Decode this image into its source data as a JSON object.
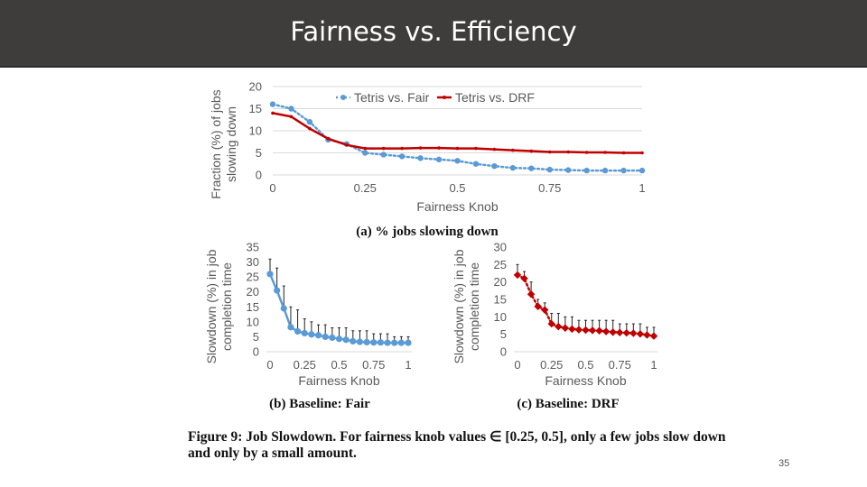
{
  "slide": {
    "title": "Fairness vs. Efficiency",
    "caption": "Figure 9: Job Slowdown. For fairness knob values ∈ [0.25, 0.5], only a few jobs slow down and only by a small amount.",
    "page_number": "35",
    "colors": {
      "title_bg": "#3f3d3b",
      "tetris_fair": "#5b9bd5",
      "tetris_drf": "#c00000"
    }
  },
  "chart_data": [
    {
      "id": "a",
      "type": "line",
      "subcaption": "(a) % jobs slowing down",
      "xlabel": "Fairness Knob",
      "ylabel": "Fraction (%) of jobs slowing down",
      "ylabel_lines": [
        "Fraction (%) of jobs",
        "slowing down"
      ],
      "xlim": [
        0,
        1
      ],
      "ylim": [
        0,
        20
      ],
      "xticks": [
        0,
        0.25,
        0.5,
        0.75,
        1
      ],
      "xtick_labels": [
        "0",
        "0.25",
        "0.5",
        "0.75",
        "1"
      ],
      "yticks": [
        0,
        5,
        10,
        15,
        20
      ],
      "ytick_labels": [
        "0",
        "5",
        "10",
        "15",
        "20"
      ],
      "grid": true,
      "legend": "top-center",
      "x": [
        0,
        0.05,
        0.1,
        0.15,
        0.2,
        0.25,
        0.3,
        0.35,
        0.4,
        0.45,
        0.5,
        0.55,
        0.6,
        0.65,
        0.7,
        0.75,
        0.8,
        0.85,
        0.9,
        0.95,
        1.0
      ],
      "series": [
        {
          "name": "Tetris vs. Fair",
          "color": "#5b9bd5",
          "style": "dotted",
          "values": [
            16,
            15,
            12,
            8,
            7,
            5,
            4.6,
            4.2,
            3.8,
            3.5,
            3.2,
            2.5,
            2.0,
            1.6,
            1.5,
            1.2,
            1.1,
            1.0,
            1.0,
            1.0,
            1.0
          ]
        },
        {
          "name": "Tetris vs. DRF",
          "color": "#c00000",
          "style": "solid",
          "values": [
            14,
            13.2,
            10.5,
            8.2,
            6.8,
            6.0,
            6.0,
            6.0,
            6.1,
            6.1,
            6.0,
            6.0,
            5.8,
            5.6,
            5.4,
            5.2,
            5.2,
            5.1,
            5.1,
            5.0,
            5.0
          ]
        }
      ]
    },
    {
      "id": "b",
      "type": "line",
      "subcaption": "(b) Baseline: Fair",
      "xlabel": "Fairness Knob",
      "ylabel": "Slowdown (%) in job completion time",
      "ylabel_lines": [
        "Slowdown (%) in job",
        "completion time"
      ],
      "xlim": [
        0,
        1
      ],
      "ylim": [
        0,
        35
      ],
      "xticks": [
        0,
        0.25,
        0.5,
        0.75,
        1
      ],
      "xtick_labels": [
        "0",
        "0.25",
        "0.5",
        "0.75",
        "1"
      ],
      "yticks": [
        0,
        5,
        10,
        15,
        20,
        25,
        30,
        35
      ],
      "ytick_labels": [
        "0",
        "5",
        "10",
        "15",
        "20",
        "25",
        "30",
        "35"
      ],
      "grid": false,
      "x": [
        0,
        0.05,
        0.1,
        0.15,
        0.2,
        0.25,
        0.3,
        0.35,
        0.4,
        0.45,
        0.5,
        0.55,
        0.6,
        0.65,
        0.7,
        0.75,
        0.8,
        0.85,
        0.9,
        0.95,
        1.0
      ],
      "series": [
        {
          "name": "",
          "color": "#5b9bd5",
          "style": "solid",
          "values": [
            26,
            20.5,
            14.5,
            8.2,
            6.8,
            6.2,
            5.8,
            5.5,
            5.0,
            4.7,
            4.3,
            4.0,
            3.5,
            3.3,
            3.2,
            3.1,
            3.1,
            3.0,
            3.0,
            3.0,
            3.0
          ],
          "error_upper": [
            31,
            28,
            22,
            15,
            14,
            11,
            10,
            9,
            9,
            8,
            8,
            8,
            7,
            7,
            7,
            6,
            6,
            6,
            5,
            5,
            5
          ]
        }
      ]
    },
    {
      "id": "c",
      "type": "line",
      "subcaption": "(c) Baseline: DRF",
      "xlabel": "Fairness Knob",
      "ylabel": "Slowdown (%) in job completion time",
      "ylabel_lines": [
        "Slowdown (%) in job",
        "completion time"
      ],
      "xlim": [
        0,
        1
      ],
      "ylim": [
        0,
        30
      ],
      "xticks": [
        0,
        0.25,
        0.5,
        0.75,
        1
      ],
      "xtick_labels": [
        "0",
        "0.25",
        "0.5",
        "0.75",
        "1"
      ],
      "yticks": [
        0,
        5,
        10,
        15,
        20,
        25,
        30
      ],
      "ytick_labels": [
        "0",
        "5",
        "10",
        "15",
        "20",
        "25",
        "30"
      ],
      "grid": false,
      "x": [
        0,
        0.05,
        0.1,
        0.15,
        0.2,
        0.25,
        0.3,
        0.35,
        0.4,
        0.45,
        0.5,
        0.55,
        0.6,
        0.65,
        0.7,
        0.75,
        0.8,
        0.85,
        0.9,
        0.95,
        1.0
      ],
      "series": [
        {
          "name": "",
          "color": "#c00000",
          "style": "dotted",
          "values": [
            22,
            21,
            16.5,
            13,
            12,
            8,
            7.2,
            6.8,
            6.5,
            6.3,
            6.2,
            6.1,
            6.0,
            5.8,
            5.6,
            5.5,
            5.4,
            5.3,
            5.1,
            4.8,
            4.5
          ],
          "error_upper": [
            25,
            23,
            20,
            15,
            14,
            11,
            11,
            10,
            10,
            9,
            9,
            9,
            9,
            9,
            9,
            8,
            8,
            8,
            8,
            7,
            7
          ]
        }
      ]
    }
  ]
}
